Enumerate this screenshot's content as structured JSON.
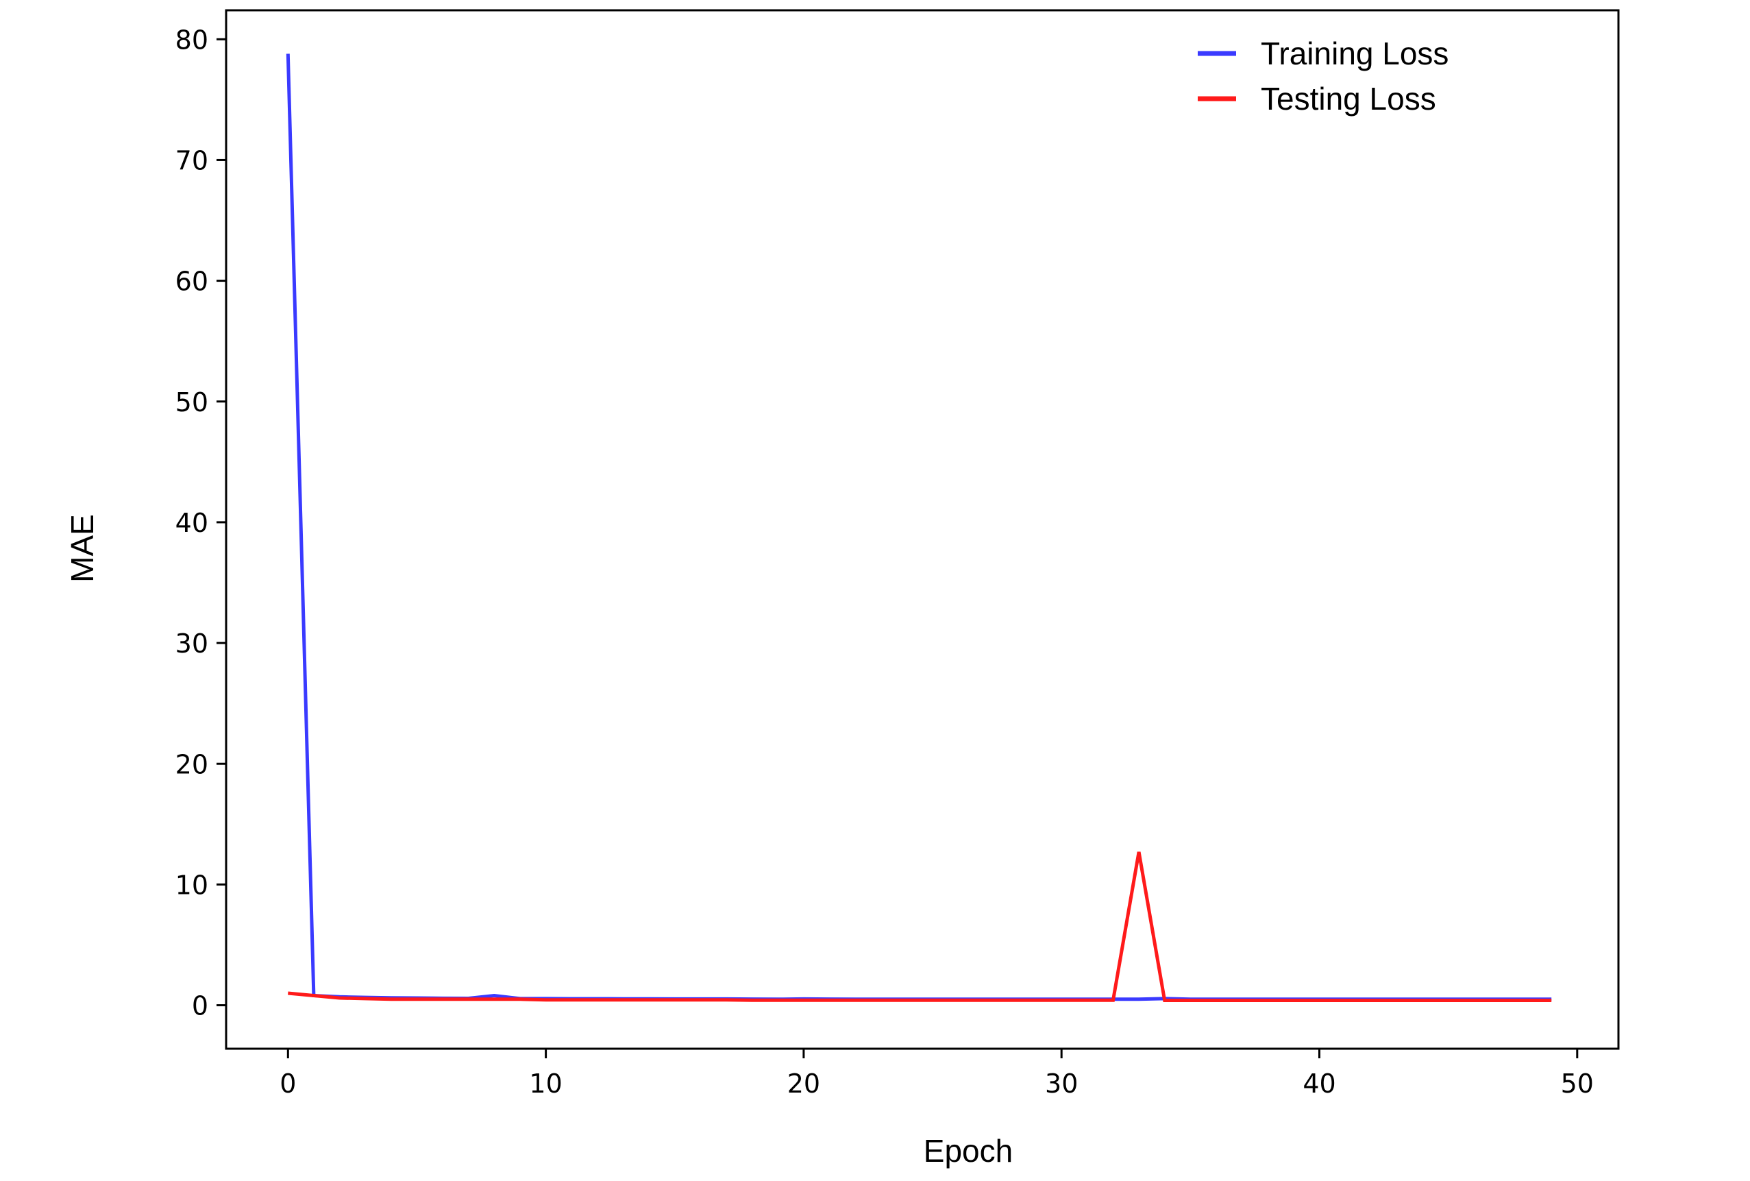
{
  "chart_data": {
    "type": "line",
    "title": "",
    "xlabel": "Epoch",
    "ylabel": "MAE",
    "xlim": [
      -2.4,
      51.6
    ],
    "ylim": [
      -3.6,
      82.4
    ],
    "xticks": [
      0,
      10,
      20,
      30,
      40,
      50
    ],
    "yticks": [
      0,
      10,
      20,
      30,
      40,
      50,
      60,
      70,
      80
    ],
    "grid": false,
    "legend": {
      "position": "top-right",
      "frame": false
    },
    "series": [
      {
        "name": "Training Loss",
        "color": "#3a3aff",
        "x": [
          0,
          1,
          2,
          3,
          4,
          5,
          6,
          7,
          8,
          9,
          10,
          11,
          12,
          13,
          14,
          15,
          16,
          17,
          18,
          19,
          20,
          21,
          22,
          23,
          24,
          25,
          26,
          27,
          28,
          29,
          30,
          31,
          32,
          33,
          34,
          35,
          36,
          37,
          38,
          39,
          40,
          41,
          42,
          43,
          44,
          45,
          46,
          47,
          48,
          49
        ],
        "y": [
          78.8,
          0.8,
          0.7,
          0.65,
          0.62,
          0.6,
          0.58,
          0.57,
          0.8,
          0.55,
          0.55,
          0.54,
          0.54,
          0.53,
          0.53,
          0.52,
          0.52,
          0.52,
          0.51,
          0.5,
          0.52,
          0.51,
          0.5,
          0.5,
          0.5,
          0.5,
          0.5,
          0.5,
          0.5,
          0.5,
          0.5,
          0.5,
          0.5,
          0.5,
          0.55,
          0.5,
          0.5,
          0.5,
          0.5,
          0.5,
          0.5,
          0.5,
          0.5,
          0.5,
          0.5,
          0.5,
          0.5,
          0.5,
          0.5,
          0.5
        ]
      },
      {
        "name": "Testing Loss",
        "color": "#ff1a1a",
        "x": [
          0,
          1,
          2,
          3,
          4,
          5,
          6,
          7,
          8,
          9,
          10,
          11,
          12,
          13,
          14,
          15,
          16,
          17,
          18,
          19,
          20,
          21,
          22,
          23,
          24,
          25,
          26,
          27,
          28,
          29,
          30,
          31,
          32,
          33,
          34,
          35,
          36,
          37,
          38,
          39,
          40,
          41,
          42,
          43,
          44,
          45,
          46,
          47,
          48,
          49
        ],
        "y": [
          1.0,
          0.8,
          0.6,
          0.55,
          0.5,
          0.5,
          0.5,
          0.5,
          0.5,
          0.5,
          0.45,
          0.45,
          0.45,
          0.45,
          0.45,
          0.45,
          0.45,
          0.45,
          0.42,
          0.42,
          0.42,
          0.42,
          0.42,
          0.42,
          0.42,
          0.42,
          0.42,
          0.42,
          0.42,
          0.42,
          0.42,
          0.42,
          0.42,
          12.7,
          0.4,
          0.4,
          0.4,
          0.4,
          0.4,
          0.4,
          0.4,
          0.4,
          0.4,
          0.4,
          0.4,
          0.4,
          0.4,
          0.4,
          0.4,
          0.4
        ]
      }
    ]
  }
}
